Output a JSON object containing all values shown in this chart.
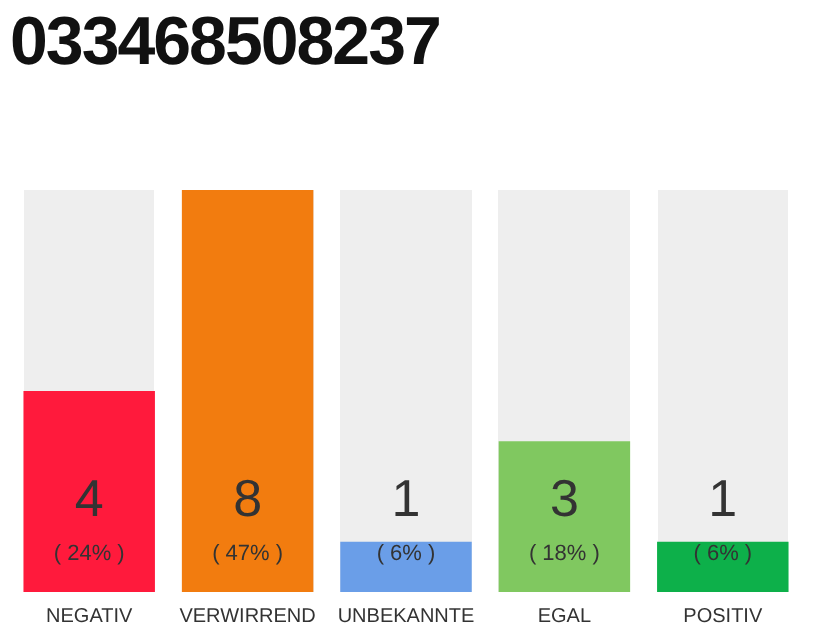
{
  "chart_data": {
    "type": "bar",
    "title": "033468508237",
    "categories": [
      "NEGATIV",
      "VERWIRREND",
      "UNBEKANNTE",
      "EGAL",
      "POSITIV"
    ],
    "values": [
      4,
      8,
      1,
      3,
      1
    ],
    "ylim": [
      0,
      8
    ],
    "colors": [
      "#ff1a3c",
      "#f27c0f",
      "#6a9ee8",
      "#80c860",
      "#0db04a"
    ],
    "value_labels": [
      "4\n( 24% )",
      "8\n( 47% )",
      "1\n( 6% )",
      "3\n( 18% )",
      "1\n( 6% )"
    ],
    "tick_labels": "x",
    "grid": false,
    "legend": false
  }
}
